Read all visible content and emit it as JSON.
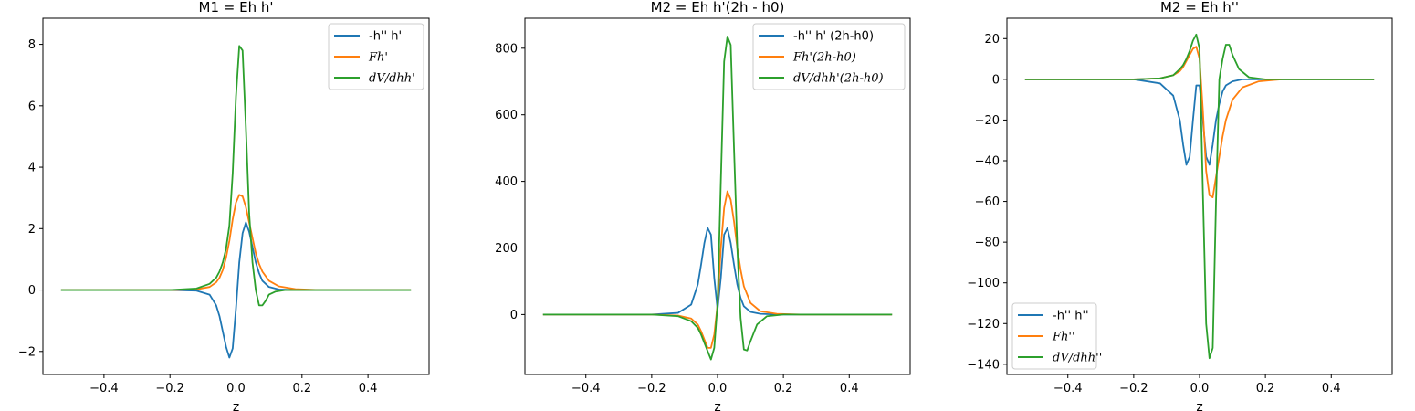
{
  "chart_data": [
    {
      "type": "line",
      "title": "M1 = Eh h'",
      "xlabel": "z",
      "ylabel": "",
      "xlim": [
        -0.585,
        0.585
      ],
      "ylim": [
        -2.75,
        8.85
      ],
      "xticks": [
        -0.4,
        -0.2,
        0.0,
        0.2,
        0.4
      ],
      "xtick_labels": [
        "−0.4",
        "−0.2",
        "0.0",
        "0.2",
        "0.4"
      ],
      "yticks": [
        -2,
        0,
        2,
        4,
        6,
        8
      ],
      "ytick_labels": [
        "−2",
        "0",
        "2",
        "4",
        "6",
        "8"
      ],
      "legend_position": "upper right",
      "series": [
        {
          "name": "-h'' h'",
          "color": "#1f77b4",
          "x": [
            -0.53,
            -0.2,
            -0.12,
            -0.08,
            -0.06,
            -0.05,
            -0.04,
            -0.03,
            -0.02,
            -0.01,
            0.0,
            0.01,
            0.02,
            0.03,
            0.04,
            0.05,
            0.06,
            0.07,
            0.08,
            0.1,
            0.13,
            0.18,
            0.53
          ],
          "y": [
            0,
            0,
            -0.02,
            -0.15,
            -0.5,
            -0.85,
            -1.35,
            -1.85,
            -2.2,
            -1.9,
            -0.6,
            0.9,
            1.85,
            2.2,
            1.9,
            1.4,
            0.9,
            0.55,
            0.3,
            0.1,
            0.02,
            0,
            0
          ]
        },
        {
          "name": "Fh'",
          "color": "#ff7f0e",
          "x": [
            -0.53,
            -0.2,
            -0.12,
            -0.08,
            -0.06,
            -0.05,
            -0.04,
            -0.03,
            -0.02,
            -0.01,
            0.0,
            0.01,
            0.02,
            0.03,
            0.04,
            0.05,
            0.06,
            0.07,
            0.08,
            0.1,
            0.13,
            0.18,
            0.25,
            0.53
          ],
          "y": [
            0,
            0,
            0.02,
            0.1,
            0.25,
            0.4,
            0.65,
            1.05,
            1.6,
            2.3,
            2.85,
            3.1,
            3.05,
            2.7,
            2.2,
            1.7,
            1.2,
            0.85,
            0.6,
            0.3,
            0.12,
            0.03,
            0,
            0
          ]
        },
        {
          "name": "dV/dhh'",
          "color": "#2ca02c",
          "x": [
            -0.53,
            -0.2,
            -0.12,
            -0.08,
            -0.06,
            -0.05,
            -0.04,
            -0.03,
            -0.02,
            -0.01,
            0.0,
            0.01,
            0.02,
            0.03,
            0.04,
            0.05,
            0.06,
            0.07,
            0.08,
            0.09,
            0.1,
            0.12,
            0.15,
            0.2,
            0.53
          ],
          "y": [
            0,
            0,
            0.05,
            0.2,
            0.4,
            0.6,
            0.9,
            1.35,
            2.1,
            3.8,
            6.3,
            7.95,
            7.8,
            5.3,
            2.5,
            0.9,
            0.0,
            -0.5,
            -0.5,
            -0.35,
            -0.15,
            -0.05,
            0,
            0,
            0
          ]
        }
      ]
    },
    {
      "type": "line",
      "title": "M2 = Eh h'(2h - h0)",
      "xlabel": "z",
      "ylabel": "",
      "xlim": [
        -0.585,
        0.585
      ],
      "ylim": [
        -180,
        890
      ],
      "xticks": [
        -0.4,
        -0.2,
        0.0,
        0.2,
        0.4
      ],
      "xtick_labels": [
        "−0.4",
        "−0.2",
        "0.0",
        "0.2",
        "0.4"
      ],
      "yticks": [
        0,
        200,
        400,
        600,
        800
      ],
      "ytick_labels": [
        "0",
        "200",
        "400",
        "600",
        "800"
      ],
      "legend_position": "upper right",
      "series": [
        {
          "name": "-h'' h' (2h-h0)",
          "color": "#1f77b4",
          "x": [
            -0.53,
            -0.2,
            -0.12,
            -0.08,
            -0.06,
            -0.05,
            -0.04,
            -0.03,
            -0.02,
            -0.01,
            0.0,
            0.01,
            0.02,
            0.03,
            0.04,
            0.05,
            0.06,
            0.07,
            0.08,
            0.1,
            0.13,
            0.18,
            0.53
          ],
          "y": [
            0,
            0,
            5,
            30,
            90,
            150,
            215,
            260,
            240,
            110,
            15,
            110,
            240,
            260,
            215,
            150,
            90,
            50,
            25,
            8,
            2,
            0,
            0
          ]
        },
        {
          "name": "Fh'(2h-h0)",
          "color": "#ff7f0e",
          "x": [
            -0.53,
            -0.2,
            -0.12,
            -0.08,
            -0.06,
            -0.05,
            -0.04,
            -0.03,
            -0.02,
            -0.01,
            0.0,
            0.01,
            0.02,
            0.03,
            0.04,
            0.05,
            0.06,
            0.07,
            0.08,
            0.1,
            0.13,
            0.18,
            0.25,
            0.53
          ],
          "y": [
            0,
            0,
            -3,
            -12,
            -30,
            -50,
            -75,
            -100,
            -100,
            -60,
            30,
            200,
            320,
            370,
            345,
            280,
            200,
            135,
            85,
            35,
            10,
            2,
            0,
            0
          ]
        },
        {
          "name": "dV/dhh'(2h-h0)",
          "color": "#2ca02c",
          "x": [
            -0.53,
            -0.2,
            -0.12,
            -0.08,
            -0.06,
            -0.05,
            -0.04,
            -0.03,
            -0.02,
            -0.01,
            0.0,
            0.01,
            0.02,
            0.03,
            0.04,
            0.05,
            0.06,
            0.07,
            0.08,
            0.09,
            0.1,
            0.12,
            0.15,
            0.2,
            0.53
          ],
          "y": [
            0,
            0,
            -5,
            -20,
            -40,
            -60,
            -85,
            -110,
            -135,
            -100,
            30,
            400,
            760,
            835,
            810,
            500,
            200,
            -10,
            -105,
            -108,
            -80,
            -30,
            -5,
            0,
            0
          ]
        }
      ]
    },
    {
      "type": "line",
      "title": "M2 = Eh h''",
      "xlabel": "z",
      "ylabel": "",
      "xlim": [
        -0.585,
        0.585
      ],
      "ylim": [
        -145,
        30
      ],
      "xticks": [
        -0.4,
        -0.2,
        0.0,
        0.2,
        0.4
      ],
      "xtick_labels": [
        "−0.4",
        "−0.2",
        "0.0",
        "0.2",
        "0.4"
      ],
      "yticks": [
        -140,
        -120,
        -100,
        -80,
        -60,
        -40,
        -20,
        0,
        20
      ],
      "ytick_labels": [
        "−140",
        "−120",
        "−100",
        "−80",
        "−60",
        "−40",
        "−20",
        "0",
        "20"
      ],
      "legend_position": "lower left",
      "series": [
        {
          "name": "-h'' h''",
          "color": "#1f77b4",
          "x": [
            -0.53,
            -0.2,
            -0.12,
            -0.08,
            -0.06,
            -0.05,
            -0.04,
            -0.03,
            -0.02,
            -0.01,
            0.0,
            0.01,
            0.02,
            0.03,
            0.04,
            0.05,
            0.06,
            0.07,
            0.08,
            0.1,
            0.13,
            0.18,
            0.53
          ],
          "y": [
            0,
            0,
            -2,
            -8,
            -20,
            -32,
            -42,
            -38,
            -20,
            -3,
            -3,
            -20,
            -38,
            -42,
            -32,
            -20,
            -12,
            -6,
            -3,
            -1,
            0,
            0,
            0
          ]
        },
        {
          "name": "Fh''",
          "color": "#ff7f0e",
          "x": [
            -0.53,
            -0.2,
            -0.12,
            -0.08,
            -0.06,
            -0.05,
            -0.04,
            -0.03,
            -0.02,
            -0.01,
            0.0,
            0.01,
            0.02,
            0.03,
            0.04,
            0.05,
            0.06,
            0.07,
            0.08,
            0.1,
            0.13,
            0.18,
            0.25,
            0.53
          ],
          "y": [
            0,
            0,
            0.5,
            2,
            4,
            6,
            9,
            12,
            15,
            16,
            10,
            -15,
            -45,
            -57,
            -58,
            -48,
            -38,
            -28,
            -20,
            -10,
            -4,
            -1,
            0,
            0
          ]
        },
        {
          "name": "dV/dhh''",
          "color": "#2ca02c",
          "x": [
            -0.53,
            -0.2,
            -0.12,
            -0.08,
            -0.06,
            -0.05,
            -0.04,
            -0.03,
            -0.02,
            -0.01,
            0.0,
            0.01,
            0.02,
            0.03,
            0.04,
            0.05,
            0.06,
            0.07,
            0.08,
            0.09,
            0.1,
            0.12,
            0.15,
            0.2,
            0.53
          ],
          "y": [
            0,
            0,
            0.5,
            2,
            5,
            7,
            10,
            14,
            19,
            22,
            15,
            -55,
            -120,
            -137,
            -132,
            -60,
            0,
            10,
            17,
            17,
            12,
            5,
            1,
            0,
            0
          ]
        }
      ]
    }
  ]
}
